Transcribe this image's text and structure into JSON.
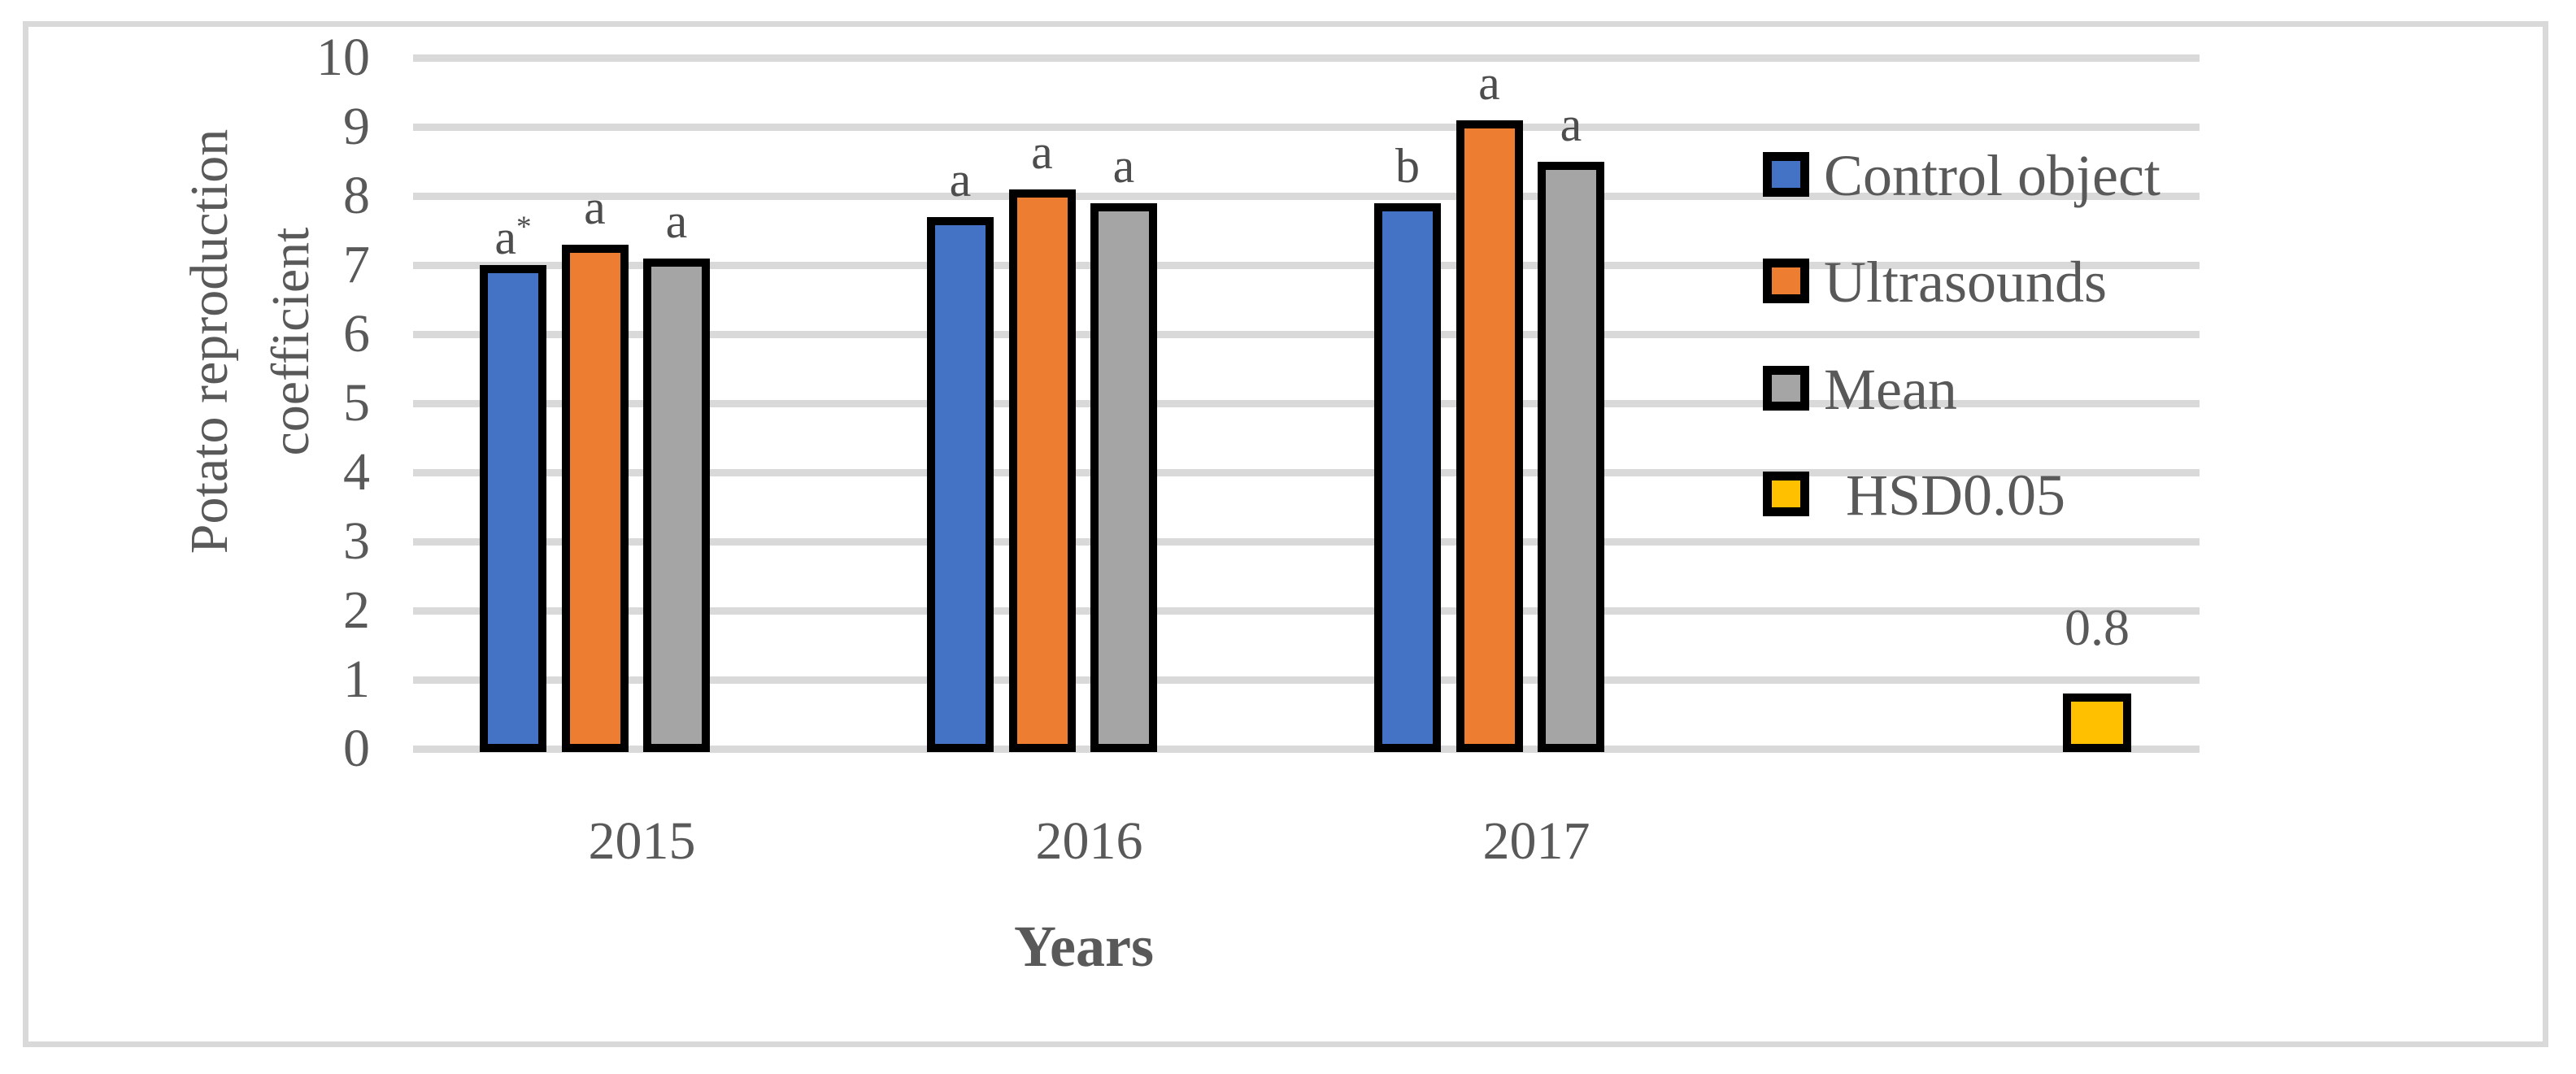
{
  "chart_data": {
    "type": "bar",
    "title": "",
    "xlabel": "Years",
    "ylabel": "Potato reproduction coefficient",
    "ylabel_lines": [
      "Potato reproduction",
      "coefficient"
    ],
    "ylim": [
      0,
      10
    ],
    "ytick_interval": 1,
    "grid": "horizontal",
    "legend_position": "right",
    "categories": [
      "2015",
      "2016",
      "2017"
    ],
    "series": [
      {
        "name": "Control object",
        "color": "#4472C4",
        "values": [
          7.0,
          7.7,
          7.9
        ],
        "bar_letters": [
          "a*",
          "a",
          "b"
        ]
      },
      {
        "name": "Ultrasounds",
        "color": "#ED7D31",
        "values": [
          7.3,
          8.1,
          9.1
        ],
        "bar_letters": [
          "a",
          "a",
          "a"
        ]
      },
      {
        "name": "Mean",
        "color": "#A5A5A5",
        "values": [
          7.1,
          7.9,
          8.5
        ],
        "bar_letters": [
          "a",
          "a",
          "a"
        ]
      }
    ],
    "extra_bar": {
      "name": "HSD0.05",
      "color": "#FFC000",
      "value": 0.8,
      "data_label": "0.8"
    },
    "legend": [
      {
        "label": "Control object",
        "color": "#4472C4",
        "indent": false
      },
      {
        "label": "Ultrasounds",
        "color": "#ED7D31",
        "indent": false
      },
      {
        "label": "Mean",
        "color": "#A5A5A5",
        "indent": false
      },
      {
        "label": "HSD0.05",
        "color": "#FFC000",
        "indent": true
      }
    ],
    "colors": {
      "gridline": "#D9D9D9",
      "frame_border": "#D9D9D9",
      "axis_text": "#595959",
      "annotation_text": "#4d4d4d",
      "bar_border": "#000000"
    }
  }
}
